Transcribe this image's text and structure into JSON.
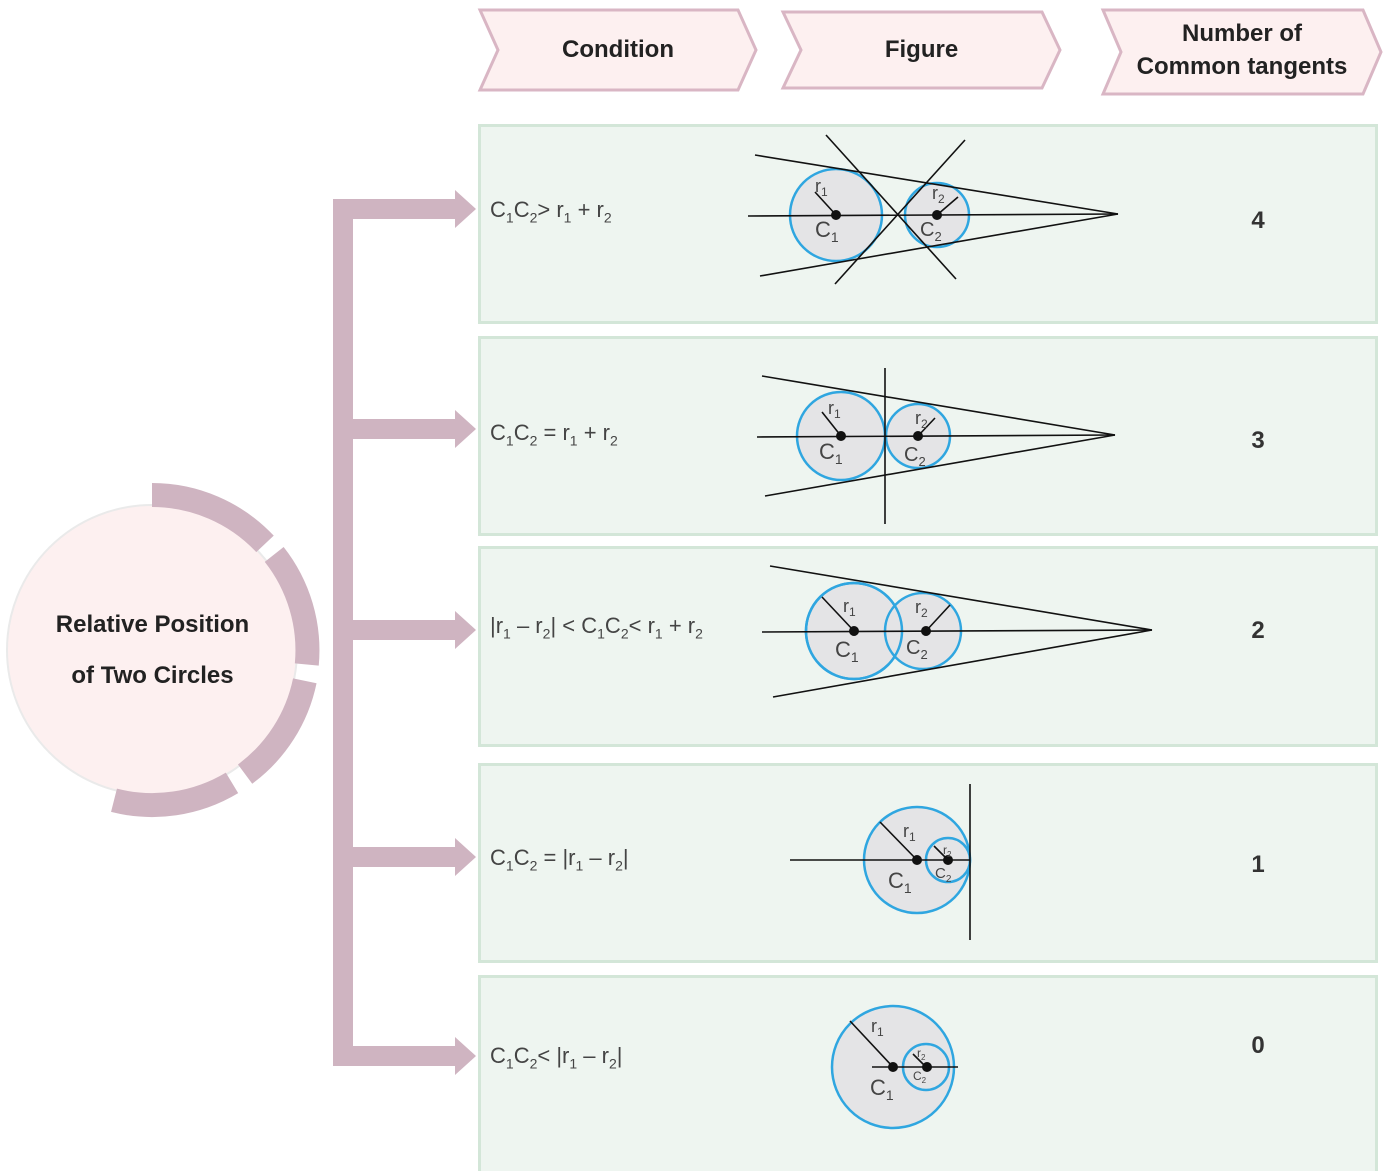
{
  "headers": {
    "condition": "Condition",
    "figure": "Figure",
    "tangents_line1": "Number of",
    "tangents_line2": "Common tangents"
  },
  "center": {
    "line1": "Relative Position",
    "line2": "of Two Circles"
  },
  "rows": [
    {
      "condition_html": "C<sub>1</sub>C<sub>2</sub>&gt; r<sub>1</sub> + r<sub>2</sub>",
      "count": "4"
    },
    {
      "condition_html": "C<sub>1</sub>C<sub>2</sub> = r<sub>1</sub> + r<sub>2</sub>",
      "count": "3"
    },
    {
      "condition_html": "|r<sub>1</sub> – r<sub>2</sub>| &lt; C<sub>1</sub>C<sub>2</sub>&lt; r<sub>1</sub> + r<sub>2</sub>",
      "count": "2"
    },
    {
      "condition_html": "C<sub>1</sub>C<sub>2</sub> = |r<sub>1</sub> – r<sub>2</sub>|",
      "count": "1"
    },
    {
      "condition_html": "C<sub>1</sub>C<sub>2</sub>&lt; |r<sub>1</sub> – r<sub>2</sub>|",
      "count": "0"
    }
  ],
  "figure_labels": {
    "c1": "C",
    "c2": "C",
    "r": "r",
    "sub1": "1",
    "sub2": "2"
  },
  "colors": {
    "header_fill": "#fdf0f0",
    "header_stroke": "#d9b6c4",
    "arrow": "#cfb4c1",
    "row_fill": "#eef5f0",
    "row_border": "#d3e6d8",
    "circle_stroke": "#2fa6e0",
    "circle_fill": "#e4e4e6",
    "center_circle": "#fdf0f0"
  }
}
